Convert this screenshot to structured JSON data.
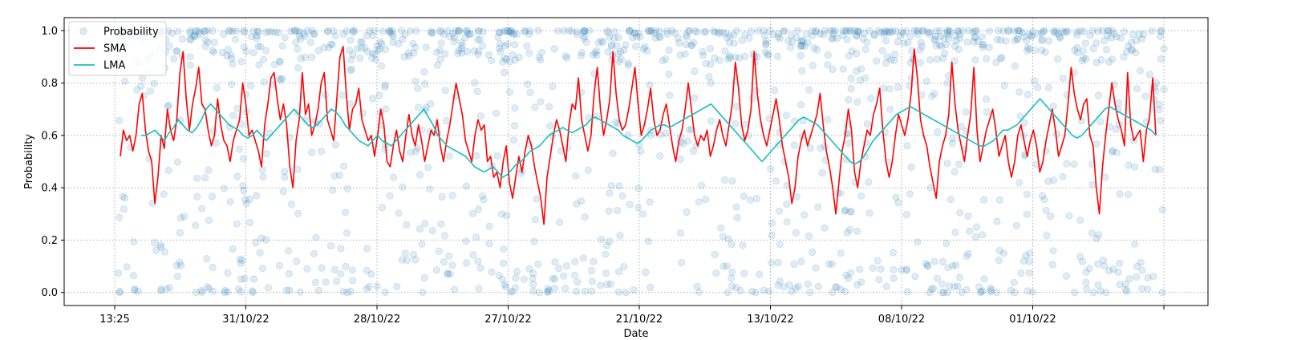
{
  "chart_data": {
    "type": "scatter",
    "title": "",
    "xlabel": "Date",
    "ylabel": "Probability",
    "x_ticks": [
      "13:25",
      "31/10/22",
      "28/10/22",
      "27/10/22",
      "21/10/22",
      "13/10/22",
      "08/10/22",
      "01/10/22",
      ""
    ],
    "y_ticks": [
      "0.0",
      "0.2",
      "0.4",
      "0.6",
      "0.8",
      "1.0"
    ],
    "ylim": [
      -0.05,
      1.05
    ],
    "grid": true,
    "legend_position": "top-left",
    "colors": {
      "probability": "#1f77b4",
      "sma": "#ff0000",
      "lma": "#17bebf",
      "grid": "#b0b0b0"
    },
    "series": [
      {
        "name": "Probability",
        "style": "scatter-circles-translucent",
        "n_points": 1400,
        "value_mix": {
          "near_1": 0.42,
          "near_0": 0.14,
          "between": 0.44
        }
      },
      {
        "name": "SMA",
        "style": "line",
        "values": [
          0.52,
          0.62,
          0.58,
          0.6,
          0.54,
          0.6,
          0.72,
          0.76,
          0.62,
          0.54,
          0.5,
          0.34,
          0.44,
          0.6,
          0.55,
          0.7,
          0.62,
          0.58,
          0.66,
          0.84,
          0.92,
          0.74,
          0.62,
          0.72,
          0.78,
          0.86,
          0.72,
          0.7,
          0.62,
          0.56,
          0.6,
          0.74,
          0.64,
          0.58,
          0.56,
          0.5,
          0.58,
          0.62,
          0.66,
          0.8,
          0.72,
          0.6,
          0.62,
          0.58,
          0.54,
          0.48,
          0.64,
          0.72,
          0.82,
          0.84,
          0.74,
          0.66,
          0.72,
          0.64,
          0.48,
          0.4,
          0.58,
          0.66,
          0.84,
          0.68,
          0.72,
          0.6,
          0.64,
          0.7,
          0.8,
          0.84,
          0.66,
          0.62,
          0.58,
          0.74,
          0.9,
          0.94,
          0.76,
          0.62,
          0.7,
          0.72,
          0.78,
          0.66,
          0.62,
          0.58,
          0.6,
          0.52,
          0.6,
          0.7,
          0.64,
          0.5,
          0.48,
          0.56,
          0.62,
          0.54,
          0.5,
          0.6,
          0.68,
          0.6,
          0.56,
          0.64,
          0.58,
          0.5,
          0.56,
          0.62,
          0.6,
          0.66,
          0.56,
          0.5,
          0.58,
          0.64,
          0.72,
          0.8,
          0.74,
          0.68,
          0.58,
          0.54,
          0.5,
          0.6,
          0.66,
          0.62,
          0.64,
          0.5,
          0.52,
          0.44,
          0.46,
          0.4,
          0.5,
          0.56,
          0.42,
          0.36,
          0.44,
          0.52,
          0.46,
          0.54,
          0.6,
          0.56,
          0.48,
          0.42,
          0.36,
          0.26,
          0.44,
          0.52,
          0.6,
          0.66,
          0.62,
          0.56,
          0.5,
          0.64,
          0.72,
          0.7,
          0.82,
          0.66,
          0.6,
          0.54,
          0.6,
          0.76,
          0.86,
          0.7,
          0.6,
          0.66,
          0.74,
          0.92,
          0.76,
          0.66,
          0.62,
          0.64,
          0.7,
          0.78,
          0.86,
          0.72,
          0.6,
          0.64,
          0.7,
          0.78,
          0.66,
          0.6,
          0.62,
          0.68,
          0.72,
          0.64,
          0.56,
          0.5,
          0.58,
          0.62,
          0.7,
          0.8,
          0.7,
          0.6,
          0.56,
          0.6,
          0.58,
          0.62,
          0.52,
          0.56,
          0.62,
          0.66,
          0.6,
          0.56,
          0.64,
          0.72,
          0.88,
          0.78,
          0.64,
          0.58,
          0.62,
          0.7,
          0.92,
          0.76,
          0.66,
          0.6,
          0.56,
          0.62,
          0.68,
          0.74,
          0.66,
          0.56,
          0.5,
          0.44,
          0.34,
          0.4,
          0.52,
          0.58,
          0.62,
          0.56,
          0.6,
          0.64,
          0.68,
          0.76,
          0.64,
          0.54,
          0.48,
          0.4,
          0.3,
          0.42,
          0.54,
          0.6,
          0.7,
          0.62,
          0.46,
          0.4,
          0.5,
          0.56,
          0.62,
          0.6,
          0.68,
          0.72,
          0.78,
          0.62,
          0.5,
          0.44,
          0.5,
          0.6,
          0.68,
          0.64,
          0.6,
          0.66,
          0.76,
          0.93,
          0.82,
          0.66,
          0.6,
          0.56,
          0.48,
          0.42,
          0.36,
          0.5,
          0.56,
          0.6,
          0.68,
          0.88,
          0.72,
          0.62,
          0.56,
          0.5,
          0.6,
          0.68,
          0.86,
          0.62,
          0.5,
          0.56,
          0.62,
          0.66,
          0.7,
          0.62,
          0.52,
          0.56,
          0.6,
          0.5,
          0.44,
          0.5,
          0.6,
          0.64,
          0.58,
          0.52,
          0.58,
          0.62,
          0.56,
          0.46,
          0.5,
          0.58,
          0.64,
          0.7,
          0.62,
          0.52,
          0.56,
          0.6,
          0.72,
          0.86,
          0.76,
          0.7,
          0.66,
          0.72,
          0.74,
          0.6,
          0.56,
          0.4,
          0.3,
          0.48,
          0.6,
          0.7,
          0.8,
          0.72,
          0.66,
          0.62,
          0.56,
          0.84,
          0.64,
          0.58,
          0.6,
          0.62,
          0.5,
          0.62,
          0.67,
          0.82,
          0.6
        ]
      },
      {
        "name": "LMA",
        "style": "line",
        "values": [
          0.6,
          0.6,
          0.61,
          0.62,
          0.6,
          0.58,
          0.61,
          0.63,
          0.66,
          0.64,
          0.62,
          0.61,
          0.63,
          0.66,
          0.7,
          0.72,
          0.7,
          0.68,
          0.66,
          0.64,
          0.63,
          0.62,
          0.6,
          0.59,
          0.6,
          0.62,
          0.6,
          0.58,
          0.6,
          0.62,
          0.64,
          0.66,
          0.68,
          0.7,
          0.68,
          0.66,
          0.64,
          0.63,
          0.64,
          0.66,
          0.68,
          0.7,
          0.69,
          0.67,
          0.64,
          0.62,
          0.6,
          0.58,
          0.57,
          0.56,
          0.58,
          0.6,
          0.58,
          0.57,
          0.56,
          0.58,
          0.6,
          0.62,
          0.64,
          0.66,
          0.68,
          0.7,
          0.67,
          0.64,
          0.6,
          0.58,
          0.56,
          0.55,
          0.54,
          0.53,
          0.52,
          0.5,
          0.48,
          0.47,
          0.46,
          0.47,
          0.48,
          0.46,
          0.44,
          0.45,
          0.47,
          0.49,
          0.5,
          0.52,
          0.54,
          0.55,
          0.56,
          0.58,
          0.6,
          0.61,
          0.62,
          0.63,
          0.62,
          0.61,
          0.62,
          0.63,
          0.64,
          0.66,
          0.67,
          0.66,
          0.65,
          0.64,
          0.63,
          0.62,
          0.6,
          0.59,
          0.58,
          0.57,
          0.58,
          0.6,
          0.62,
          0.63,
          0.64,
          0.64,
          0.63,
          0.64,
          0.65,
          0.66,
          0.67,
          0.68,
          0.69,
          0.7,
          0.71,
          0.72,
          0.7,
          0.68,
          0.66,
          0.64,
          0.62,
          0.6,
          0.58,
          0.56,
          0.54,
          0.52,
          0.5,
          0.52,
          0.54,
          0.56,
          0.58,
          0.6,
          0.62,
          0.64,
          0.66,
          0.67,
          0.66,
          0.65,
          0.64,
          0.62,
          0.6,
          0.58,
          0.56,
          0.54,
          0.52,
          0.5,
          0.49,
          0.5,
          0.52,
          0.55,
          0.58,
          0.6,
          0.62,
          0.64,
          0.66,
          0.68,
          0.69,
          0.7,
          0.71,
          0.7,
          0.69,
          0.68,
          0.67,
          0.66,
          0.65,
          0.64,
          0.63,
          0.62,
          0.61,
          0.6,
          0.59,
          0.58,
          0.57,
          0.56,
          0.56,
          0.57,
          0.58,
          0.6,
          0.62,
          0.62,
          0.63,
          0.64,
          0.66,
          0.68,
          0.7,
          0.72,
          0.74,
          0.72,
          0.7,
          0.68,
          0.66,
          0.64,
          0.62,
          0.6,
          0.59,
          0.6,
          0.62,
          0.64,
          0.66,
          0.68,
          0.7,
          0.71,
          0.7,
          0.69,
          0.68,
          0.67,
          0.66,
          0.65,
          0.64,
          0.63,
          0.62,
          0.6
        ]
      }
    ]
  }
}
